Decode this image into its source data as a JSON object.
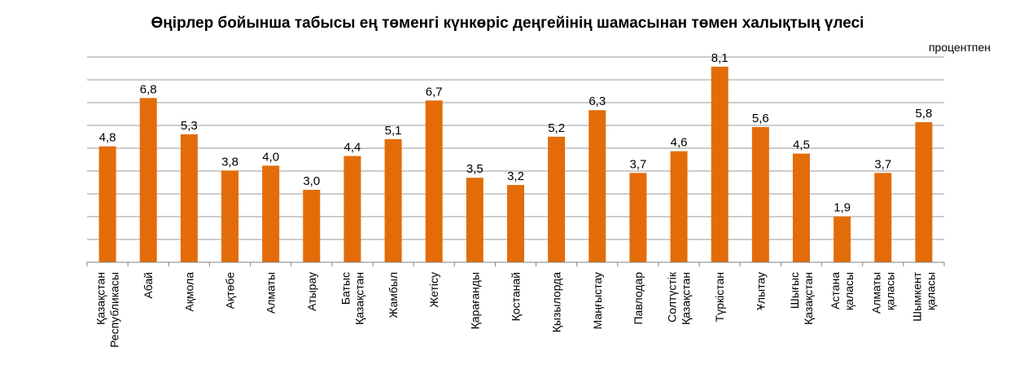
{
  "chart_data": {
    "type": "bar",
    "title": "Өңірлер бойынша табысы ең төменгі күнкөріс деңгейінің шамасынан төмен халықтың үлесі",
    "unit_label": "процентпен",
    "ylim": [
      0,
      8.5
    ],
    "grid": true,
    "bar_color": "#E36C09",
    "categories": [
      [
        "Қазақстан",
        "Республикасы"
      ],
      [
        "Абай"
      ],
      [
        "Ақмола"
      ],
      [
        "Ақтөбе"
      ],
      [
        "Алматы"
      ],
      [
        "Атырау"
      ],
      [
        "Батыс",
        "Қазақстан"
      ],
      [
        "Жамбыл"
      ],
      [
        "Жетісу"
      ],
      [
        "Қарағанды"
      ],
      [
        "Қостанай"
      ],
      [
        "Қызылорда"
      ],
      [
        "Маңғыстау"
      ],
      [
        "Павлодар"
      ],
      [
        "Солтүстік",
        "Қазақстан"
      ],
      [
        "Түркістан"
      ],
      [
        "Ұлытау"
      ],
      [
        "Шығыс",
        "Қазақстан"
      ],
      [
        "Астана",
        "қаласы"
      ],
      [
        "Алматы",
        "қаласы"
      ],
      [
        "Шымкент",
        "қаласы"
      ]
    ],
    "values": [
      4.8,
      6.8,
      5.3,
      3.8,
      4.0,
      3.0,
      4.4,
      5.1,
      6.7,
      3.5,
      3.2,
      5.2,
      6.3,
      3.7,
      4.6,
      8.1,
      5.6,
      4.5,
      1.9,
      3.7,
      5.8
    ],
    "value_labels": [
      "4,8",
      "6,8",
      "5,3",
      "3,8",
      "4,0",
      "3,0",
      "4,4",
      "5,1",
      "6,7",
      "3,5",
      "3,2",
      "5,2",
      "6,3",
      "3,7",
      "4,6",
      "8,1",
      "5,6",
      "4,5",
      "1,9",
      "3,7",
      "5,8"
    ]
  }
}
